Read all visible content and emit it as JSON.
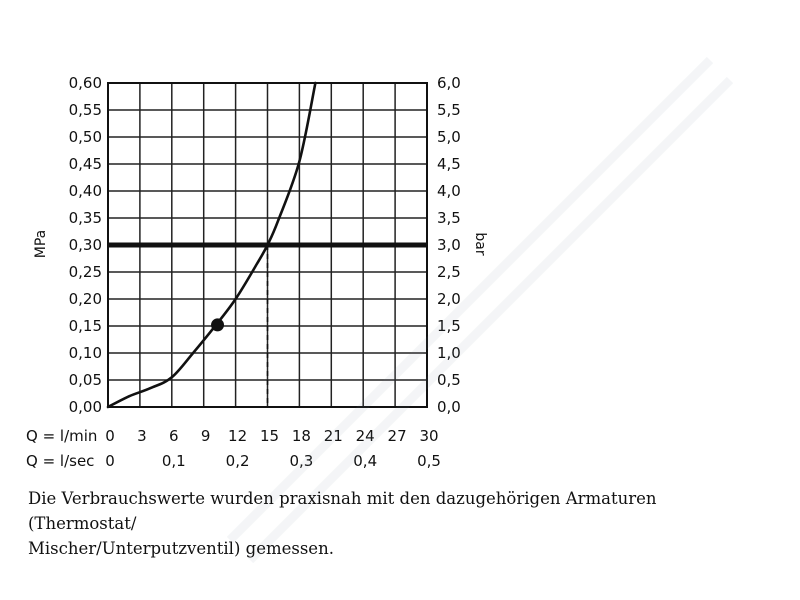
{
  "chart_data": {
    "type": "line",
    "ylabel_left": "MPa",
    "ylabel_right": "bar",
    "y_left_ticks": [
      "0,00",
      "0,05",
      "0,10",
      "0,15",
      "0,20",
      "0,25",
      "0,30",
      "0,35",
      "0,40",
      "0,45",
      "0,50",
      "0,55",
      "0,60"
    ],
    "y_right_ticks": [
      "0,0",
      "0,5",
      "1,0",
      "1,5",
      "2,0",
      "2,5",
      "3,0",
      "3,5",
      "4,0",
      "4,5",
      "5,0",
      "5,5",
      "6,0"
    ],
    "ylim_mpa": [
      0,
      0.6
    ],
    "ylim_bar": [
      0,
      6
    ],
    "x_axis_primary": {
      "label": "Q = l/min",
      "ticks": [
        "0",
        "3",
        "6",
        "9",
        "12",
        "15",
        "18",
        "21",
        "24",
        "27",
        "30"
      ],
      "values": [
        0,
        3,
        6,
        9,
        12,
        15,
        18,
        21,
        24,
        27,
        30
      ]
    },
    "x_axis_secondary": {
      "label": "Q = l/sec",
      "ticks": [
        "0",
        "0,1",
        "0,2",
        "0,3",
        "0,4",
        "0,5"
      ],
      "values": [
        0,
        6,
        12,
        18,
        24,
        30
      ]
    },
    "xlim": [
      0,
      30
    ],
    "grid": true,
    "series": [
      {
        "x": [
          0,
          2,
          4,
          6,
          8,
          10,
          12,
          14,
          15,
          16,
          18,
          19.5
        ],
        "y": [
          0.0,
          0.02,
          0.035,
          0.055,
          0.1,
          0.148,
          0.2,
          0.265,
          0.3,
          0.345,
          0.455,
          0.6
        ]
      }
    ],
    "reference_line": {
      "y": 0.3
    },
    "marker_point": {
      "x": 10.3,
      "y": 0.152
    },
    "dashed_drop": {
      "x": 15,
      "y": 0.3
    }
  },
  "footnote": {
    "line1": "Die Verbrauchswerte wurden praxisnah mit den dazugehörigen Armaturen (Thermostat/",
    "line2": "Mischer/Unterputzventil) gemessen."
  }
}
